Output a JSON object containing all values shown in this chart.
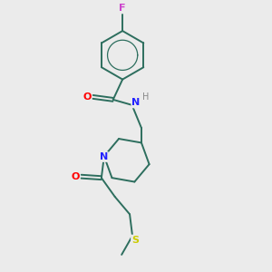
{
  "background_color": "#ebebeb",
  "bond_color": "#2d6e5e",
  "atom_colors": {
    "F": "#cc44cc",
    "O": "#ff0000",
    "N": "#2222ff",
    "H": "#888888",
    "S": "#cccc00",
    "C": "#2d6e5e"
  },
  "figsize": [
    3.0,
    3.0
  ],
  "dpi": 100
}
